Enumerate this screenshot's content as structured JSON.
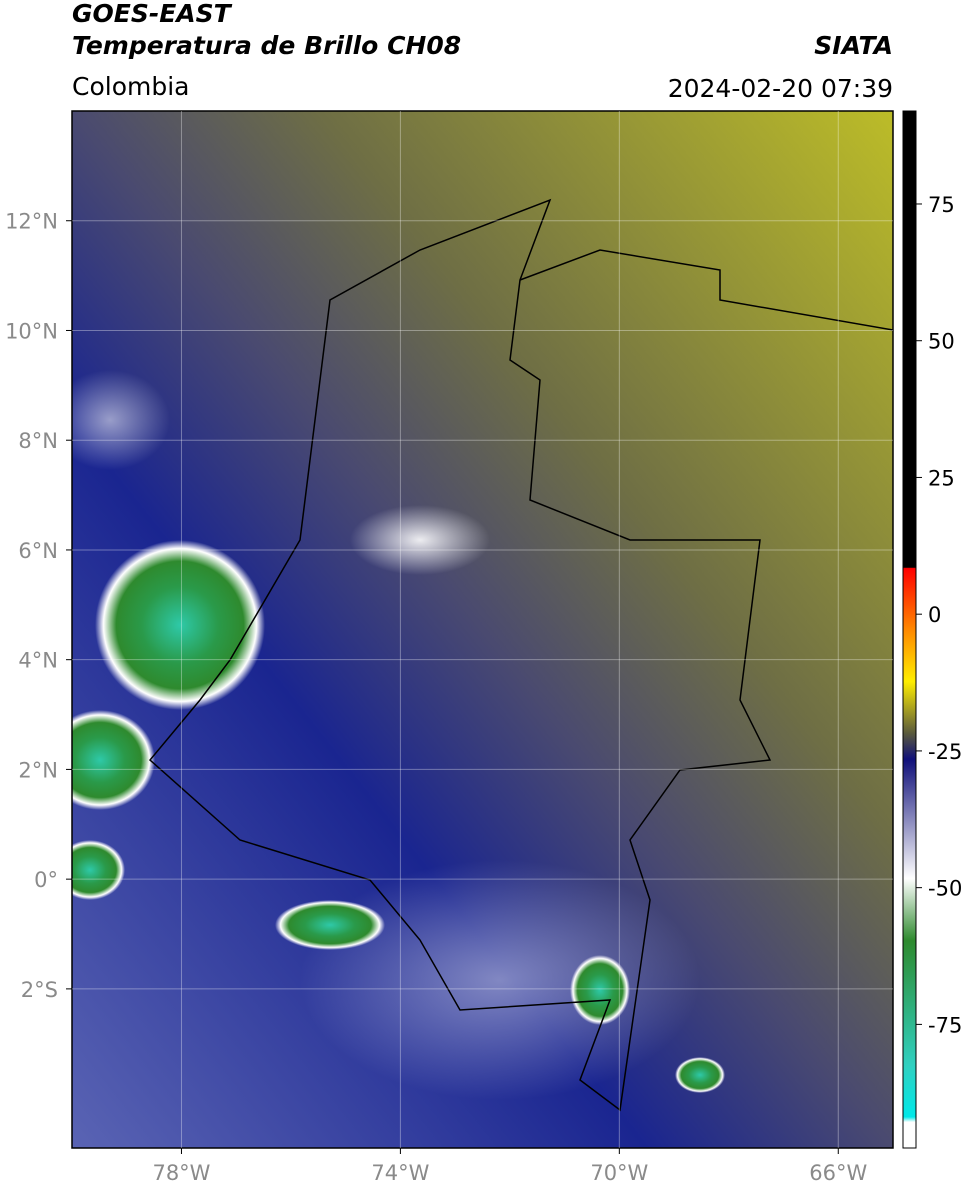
{
  "header": {
    "title": "GOES-EAST",
    "subtitle": "Temperatura de Brillo CH08",
    "source": "SIATA",
    "region": "Colombia",
    "datetime": "2024-02-20 07:39"
  },
  "map": {
    "xlim": [
      -80,
      -65
    ],
    "ylim": [
      -4.9,
      14
    ],
    "xticks": [
      {
        "value": -78,
        "label": "78°W"
      },
      {
        "value": -74,
        "label": "74°W"
      },
      {
        "value": -70,
        "label": "70°W"
      },
      {
        "value": -66,
        "label": "66°W"
      }
    ],
    "yticks": [
      {
        "value": 12,
        "label": "12°N"
      },
      {
        "value": 10,
        "label": "10°N"
      },
      {
        "value": 8,
        "label": "8°N"
      },
      {
        "value": 6,
        "label": "6°N"
      },
      {
        "value": 4,
        "label": "4°N"
      },
      {
        "value": 2,
        "label": "2°N"
      },
      {
        "value": 0,
        "label": "0°"
      },
      {
        "value": -2,
        "label": "2°S"
      }
    ],
    "grid": true
  },
  "colorbar": {
    "lim": [
      -97.6,
      92
    ],
    "ticks": [
      75,
      50,
      25,
      0,
      -25,
      -50,
      -75
    ]
  }
}
